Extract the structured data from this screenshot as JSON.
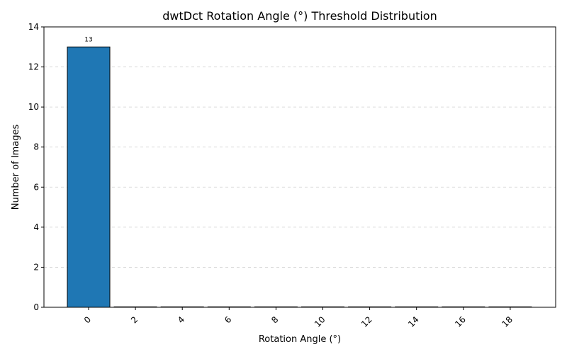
{
  "chart_data": {
    "type": "bar",
    "title": "dwtDct Rotation Angle (°) Threshold Distribution",
    "xlabel": "Rotation Angle (°)",
    "ylabel": "Number of Images",
    "categories": [
      "0",
      "2",
      "4",
      "6",
      "8",
      "10",
      "12",
      "14",
      "16",
      "18"
    ],
    "values": [
      13,
      0,
      0,
      0,
      0,
      0,
      0,
      0,
      0,
      0
    ],
    "data_labels": [
      "13",
      "",
      "",
      "",
      "",
      "",
      "",
      "",
      "",
      ""
    ],
    "ylim": [
      0,
      14
    ],
    "yticks": [
      0,
      2,
      4,
      6,
      8,
      10,
      12,
      14
    ],
    "xtick_rotation": 45,
    "grid": "y-dashed",
    "bar_color": "#1f77b4",
    "edge_color": "#000000"
  }
}
